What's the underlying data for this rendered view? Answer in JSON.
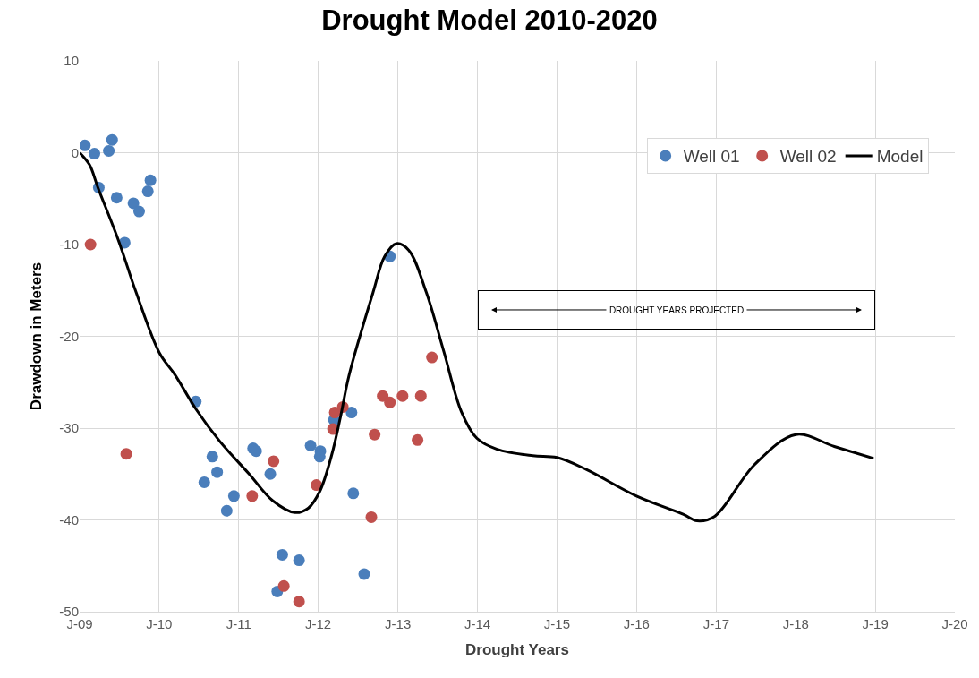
{
  "chart_data": {
    "type": "scatter",
    "title": "Drought Model 2010-2020",
    "xlabel": "Drought Years",
    "ylabel": "Drawdown in Meters",
    "series": [
      {
        "name": "Well 01",
        "color": "#4a7ebb",
        "marker": "circle",
        "x": [
          "2009-01-25",
          "2009-03-10",
          "2009-03-30",
          "2009-05-15",
          "2009-05-30",
          "2009-06-20",
          "2009-07-27",
          "2009-09-05",
          "2009-10-01",
          "2009-11-10",
          "2009-11-22",
          "2010-06-18",
          "2010-07-27",
          "2010-09-02",
          "2010-09-24",
          "2010-11-07",
          "2010-12-10",
          "2011-03-08",
          "2011-03-22",
          "2011-05-26",
          "2011-07-20",
          "2011-06-27",
          "2011-10-05",
          "2011-11-27",
          "2012-01-11",
          "2012-01-08",
          "2012-03-13",
          "2012-06-02",
          "2012-06-10",
          "2012-07-30",
          "2012-11-25"
        ],
        "values": [
          0.8,
          -0.1,
          -3.8,
          0.2,
          1.4,
          -4.9,
          -9.8,
          -5.5,
          -6.4,
          -4.2,
          -3.0,
          -27.1,
          -35.9,
          -33.1,
          -34.8,
          -39.0,
          -37.4,
          -32.2,
          -32.5,
          -35.0,
          -43.8,
          -47.8,
          -44.4,
          -31.9,
          -32.5,
          -33.1,
          -29.1,
          -28.3,
          -37.1,
          -45.9,
          -11.3
        ]
      },
      {
        "name": "Well 02",
        "color": "#c0504d",
        "marker": "circle",
        "x": [
          "2009-02-20",
          "2009-08-03",
          "2011-03-04",
          "2011-06-10",
          "2011-12-24",
          "2011-07-27",
          "2011-10-05",
          "2012-03-09",
          "2012-03-17",
          "2012-04-23",
          "2012-09-16",
          "2012-09-01",
          "2012-10-23",
          "2012-11-25",
          "2013-01-22",
          "2013-04-16",
          "2013-04-01",
          "2013-06-06"
        ],
        "values": [
          -10.0,
          -32.8,
          -37.4,
          -33.6,
          -36.2,
          -47.2,
          -48.9,
          -30.1,
          -28.3,
          -27.7,
          -30.7,
          -39.7,
          -26.5,
          -27.2,
          -26.5,
          -26.5,
          -31.3,
          -22.3
        ]
      },
      {
        "name": "Model",
        "color": "#000000",
        "type": "line",
        "marker": "none",
        "line_style": "solid",
        "x": [
          "2009-01-01",
          "2009-02-15",
          "2009-03-26",
          "2009-06-29",
          "2009-09-17",
          "2010-01-02",
          "2010-03-15",
          "2010-06-18",
          "2010-10-05",
          "2011-02-18",
          "2011-06-06",
          "2011-09-16",
          "2011-11-17",
          "2012-01-08",
          "2012-03-02",
          "2012-04-12",
          "2012-05-22",
          "2012-09-09",
          "2012-11-01",
          "2012-12-24",
          "2013-02-19",
          "2013-05-11",
          "2013-07-31",
          "2013-10-19",
          "2013-12-29",
          "2014-04-01",
          "2014-09-12",
          "2015-01-01",
          "2015-05-15",
          "2016-01-01",
          "2016-08-04",
          "2016-10-05",
          "2016-12-25",
          "2017-06-25",
          "2018-01-01",
          "2018-06-27",
          "2018-12-24"
        ],
        "values": [
          0,
          -1.3,
          -3.8,
          -9.6,
          -15.2,
          -21.8,
          -24.2,
          -27.9,
          -31.4,
          -35.0,
          -37.9,
          -39.2,
          -38.7,
          -36.9,
          -33.0,
          -28.8,
          -24.2,
          -15.2,
          -11.3,
          -9.9,
          -10.6,
          -15.2,
          -21.7,
          -28.2,
          -31.1,
          -32.3,
          -33.0,
          -33.2,
          -34.5,
          -37.4,
          -39.4,
          -40.1,
          -39.6,
          -34.0,
          -30.7,
          -32.0,
          -33.3
        ]
      }
    ],
    "annotations": [
      "DROUGHT YEARS PROJECTED"
    ],
    "xlim": [
      "2009-01-01",
      "2020-01-01"
    ],
    "xticks": [
      {
        "value": "2009-01-01",
        "label": "J-09"
      },
      {
        "value": "2010-01-01",
        "label": "J-10"
      },
      {
        "value": "2011-01-01",
        "label": "J-11"
      },
      {
        "value": "2012-01-01",
        "label": "J-12"
      },
      {
        "value": "2013-01-01",
        "label": "J-13"
      },
      {
        "value": "2014-01-01",
        "label": "J-14"
      },
      {
        "value": "2015-01-01",
        "label": "J-15"
      },
      {
        "value": "2016-01-01",
        "label": "J-16"
      },
      {
        "value": "2017-01-01",
        "label": "J-17"
      },
      {
        "value": "2018-01-01",
        "label": "J-18"
      },
      {
        "value": "2019-01-01",
        "label": "J-19"
      },
      {
        "value": "2020-01-01",
        "label": "J-20"
      }
    ],
    "ylim": [
      -50,
      10
    ],
    "yticks": [
      -50,
      -40,
      -30,
      -20,
      -10,
      0,
      10
    ],
    "grid": true,
    "legend": "top right"
  }
}
